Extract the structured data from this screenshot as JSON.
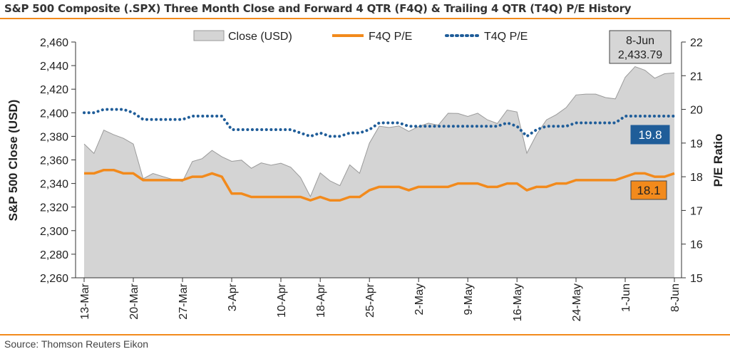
{
  "header": {
    "title": "S&P 500 Composite (.SPX) Three Month Close and Forward 4 QTR (F4Q) & Trailing 4 QTR (T4Q) P/E History"
  },
  "footer": {
    "source": "Source: Thomson Reuters Eikon"
  },
  "colors": {
    "rule": "#f28a1c",
    "close_fill": "#d4d4d4",
    "close_stroke": "#9a9a9a",
    "f4q": "#f28a1c",
    "t4q": "#1f5d99"
  },
  "chart_data": {
    "type": "area",
    "xlabel": "",
    "ylabel": "S&P 500 Close (USD)",
    "y2label": "P/E Ratio",
    "ylim": [
      2260,
      2460
    ],
    "y2lim": [
      15,
      22
    ],
    "yticks": [
      "2,260",
      "2,280",
      "2,300",
      "2,320",
      "2,340",
      "2,360",
      "2,380",
      "2,400",
      "2,420",
      "2,440",
      "2,460"
    ],
    "y2ticks": [
      "15",
      "16",
      "17",
      "18",
      "19",
      "20",
      "21",
      "22"
    ],
    "xticks": [
      {
        "label": "13-Mar",
        "index": 0
      },
      {
        "label": "20-Mar",
        "index": 5
      },
      {
        "label": "27-Mar",
        "index": 10
      },
      {
        "label": "3-Apr",
        "index": 15
      },
      {
        "label": "10-Apr",
        "index": 20
      },
      {
        "label": "18-Apr",
        "index": 24
      },
      {
        "label": "25-Apr",
        "index": 29
      },
      {
        "label": "2-May",
        "index": 34
      },
      {
        "label": "9-May",
        "index": 39
      },
      {
        "label": "16-May",
        "index": 44
      },
      {
        "label": "24-May",
        "index": 50
      },
      {
        "label": "1-Jun",
        "index": 55
      },
      {
        "label": "8-Jun",
        "index": 60
      }
    ],
    "legend": {
      "placement": "top",
      "entries": [
        "Close (USD)",
        "F4Q P/E",
        "T4Q P/E"
      ]
    },
    "series": [
      {
        "name": "Close (USD)",
        "axis": "left",
        "values": [
          2373.5,
          2365.5,
          2385.3,
          2381.4,
          2378.3,
          2373.5,
          2344.0,
          2348.5,
          2345.9,
          2343.5,
          2341.6,
          2358.6,
          2361.1,
          2368.1,
          2362.7,
          2358.8,
          2359.8,
          2352.9,
          2357.5,
          2355.5,
          2357.2,
          2353.8,
          2345.0,
          2328.9,
          2349.0,
          2342.2,
          2338.2,
          2355.8,
          2348.7,
          2374.2,
          2388.6,
          2387.5,
          2388.8,
          2384.2,
          2388.3,
          2391.2,
          2389.5,
          2399.6,
          2399.4,
          2396.9,
          2399.6,
          2394.0,
          2390.9,
          2402.3,
          2400.7,
          2365.7,
          2381.7,
          2394.0,
          2398.4,
          2404.4,
          2415.1,
          2415.8,
          2415.8,
          2412.9,
          2411.8,
          2430.1,
          2439.1,
          2436.1,
          2429.3,
          2433.1,
          2433.8
        ]
      },
      {
        "name": "F4Q P/E",
        "axis": "right",
        "values": [
          18.1,
          18.1,
          18.2,
          18.2,
          18.1,
          18.1,
          17.9,
          17.9,
          17.9,
          17.9,
          17.9,
          18.0,
          18.0,
          18.1,
          18.0,
          17.5,
          17.5,
          17.4,
          17.4,
          17.4,
          17.4,
          17.4,
          17.4,
          17.3,
          17.4,
          17.3,
          17.3,
          17.4,
          17.4,
          17.6,
          17.7,
          17.7,
          17.7,
          17.6,
          17.7,
          17.7,
          17.7,
          17.7,
          17.8,
          17.8,
          17.8,
          17.7,
          17.7,
          17.8,
          17.8,
          17.6,
          17.7,
          17.7,
          17.8,
          17.8,
          17.9,
          17.9,
          17.9,
          17.9,
          17.9,
          18.0,
          18.1,
          18.1,
          18.0,
          18.0,
          18.1
        ]
      },
      {
        "name": "T4Q P/E",
        "axis": "right",
        "values": [
          19.9,
          19.9,
          20.0,
          20.0,
          20.0,
          19.9,
          19.7,
          19.7,
          19.7,
          19.7,
          19.7,
          19.8,
          19.8,
          19.8,
          19.8,
          19.4,
          19.4,
          19.4,
          19.4,
          19.4,
          19.4,
          19.4,
          19.3,
          19.2,
          19.3,
          19.2,
          19.2,
          19.3,
          19.3,
          19.4,
          19.6,
          19.6,
          19.6,
          19.5,
          19.5,
          19.5,
          19.5,
          19.5,
          19.5,
          19.5,
          19.5,
          19.5,
          19.5,
          19.6,
          19.5,
          19.2,
          19.4,
          19.5,
          19.5,
          19.5,
          19.6,
          19.6,
          19.6,
          19.6,
          19.6,
          19.8,
          19.8,
          19.8,
          19.8,
          19.8,
          19.8
        ]
      }
    ],
    "annotations": {
      "close_box": {
        "line1": "8-Jun",
        "line2": "2,433.79"
      },
      "t4q_box": "19.8",
      "f4q_box": "18.1"
    }
  }
}
